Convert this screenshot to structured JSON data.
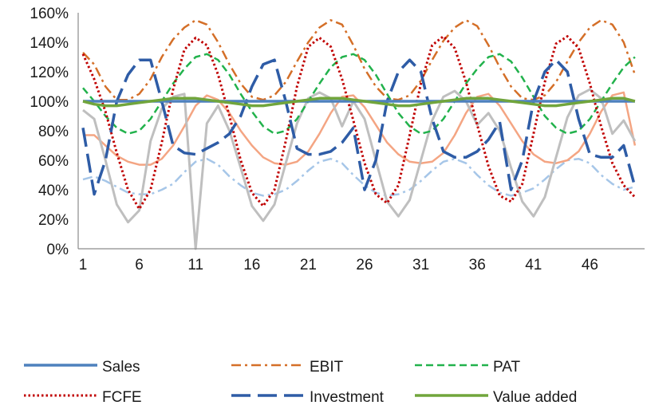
{
  "chart_data": {
    "type": "line",
    "title": "",
    "xlabel": "",
    "ylabel": "",
    "x_tick_labels": [
      "1",
      "6",
      "11",
      "16",
      "21",
      "26",
      "31",
      "36",
      "41",
      "46"
    ],
    "x_range": [
      1,
      50
    ],
    "y_tick_labels": [
      "0%",
      "20%",
      "40%",
      "60%",
      "80%",
      "100%",
      "120%",
      "140%",
      "160%"
    ],
    "ylim": [
      0,
      160
    ],
    "y_unit": "%",
    "grid": "none",
    "legend_position": "bottom",
    "series": [
      {
        "name": "Sales",
        "color": "#4e81bd",
        "dash": "solid",
        "width": 3.5,
        "legend": true,
        "values": [
          100,
          100,
          100,
          100,
          100,
          100,
          100,
          100,
          100,
          100,
          100,
          100,
          100,
          100,
          100,
          100,
          100,
          100,
          100,
          100,
          100,
          100,
          100,
          100,
          100,
          100,
          100,
          100,
          100,
          100,
          100,
          100,
          100,
          100,
          100,
          100,
          100,
          100,
          100,
          100,
          100,
          100,
          100,
          100,
          100,
          100,
          100,
          100,
          100,
          100
        ]
      },
      {
        "name": "EBIT",
        "color": "#d46f28",
        "dash": "dashdot",
        "width": 2.5,
        "legend": true,
        "values": [
          133,
          125,
          110,
          101,
          101,
          105,
          115,
          130,
          142,
          150,
          155,
          152,
          140,
          125,
          112,
          103,
          101,
          104,
          113,
          127,
          140,
          150,
          155,
          152,
          138,
          122,
          110,
          102,
          101,
          104,
          114,
          128,
          141,
          150,
          155,
          151,
          138,
          123,
          110,
          102,
          101,
          104,
          113,
          127,
          140,
          150,
          155,
          152,
          140,
          118
        ]
      },
      {
        "name": "PAT",
        "color": "#22b24c",
        "dash": "dashed",
        "width": 2.5,
        "legend": true,
        "values": [
          109,
          100,
          90,
          82,
          78,
          80,
          88,
          100,
          112,
          122,
          130,
          132,
          128,
          118,
          105,
          93,
          83,
          78,
          80,
          88,
          100,
          112,
          123,
          130,
          132,
          128,
          118,
          105,
          92,
          83,
          78,
          80,
          88,
          100,
          112,
          122,
          130,
          132,
          127,
          116,
          103,
          90,
          82,
          78,
          80,
          88,
          100,
          112,
          123,
          130
        ]
      },
      {
        "name": "FCFE",
        "color": "#c00000",
        "dash": "dotted",
        "width": 3,
        "legend": true,
        "values": [
          132,
          115,
          93,
          65,
          40,
          27,
          40,
          72,
          108,
          135,
          143,
          138,
          118,
          90,
          60,
          38,
          29,
          40,
          73,
          110,
          137,
          143,
          137,
          115,
          87,
          58,
          37,
          31,
          43,
          77,
          112,
          138,
          144,
          136,
          113,
          84,
          56,
          36,
          32,
          44,
          78,
          113,
          139,
          144,
          136,
          112,
          83,
          58,
          43,
          35
        ]
      },
      {
        "name": "Investment",
        "color": "#2e5ca6",
        "dash": "longdash",
        "width": 3.5,
        "legend": true,
        "values": [
          82,
          37,
          60,
          100,
          118,
          128,
          128,
          100,
          70,
          65,
          64,
          68,
          72,
          78,
          90,
          110,
          125,
          128,
          100,
          68,
          64,
          64,
          66,
          72,
          82,
          40,
          60,
          100,
          120,
          128,
          120,
          88,
          66,
          62,
          62,
          66,
          74,
          86,
          40,
          60,
          100,
          120,
          128,
          120,
          88,
          64,
          62,
          62,
          70,
          42
        ]
      },
      {
        "name": "Value added",
        "color": "#71a53c",
        "dash": "solid",
        "width": 3.5,
        "legend": true,
        "values": [
          100,
          98,
          97,
          97,
          98,
          99,
          100,
          101,
          102,
          102,
          102,
          101,
          100,
          99,
          98,
          97,
          97,
          98,
          99,
          100,
          101,
          102,
          102,
          102,
          101,
          100,
          99,
          98,
          97,
          97,
          98,
          99,
          100,
          101,
          102,
          102,
          102,
          101,
          100,
          99,
          98,
          97,
          97,
          98,
          99,
          100,
          101,
          102,
          102,
          100
        ]
      },
      {
        "name": "",
        "color": "#a6c6e8",
        "dash": "dashdot",
        "width": 2.5,
        "legend": false,
        "values": [
          47,
          49,
          46,
          42,
          38,
          37,
          37,
          40,
          44,
          52,
          59,
          61,
          57,
          49,
          43,
          38,
          36,
          37,
          40,
          46,
          53,
          59,
          61,
          58,
          50,
          43,
          38,
          36,
          37,
          40,
          46,
          53,
          59,
          61,
          58,
          50,
          43,
          38,
          36,
          38,
          41,
          47,
          54,
          60,
          61,
          58,
          50,
          44,
          40,
          42
        ]
      },
      {
        "name": "",
        "color": "#f4a583",
        "dash": "solid",
        "width": 2.5,
        "legend": false,
        "values": [
          77,
          77,
          70,
          63,
          59,
          57,
          57,
          61,
          70,
          83,
          97,
          104,
          101,
          92,
          80,
          70,
          62,
          58,
          57,
          59,
          66,
          78,
          92,
          103,
          104,
          96,
          84,
          72,
          64,
          59,
          58,
          59,
          65,
          77,
          92,
          103,
          105,
          97,
          85,
          73,
          64,
          59,
          58,
          60,
          66,
          78,
          93,
          104,
          106,
          70
        ]
      },
      {
        "name": "",
        "color": "#bfbfbf",
        "dash": "solid",
        "width": 3,
        "legend": false,
        "values": [
          94,
          88,
          60,
          30,
          18,
          26,
          73,
          95,
          103,
          105,
          0,
          85,
          97,
          80,
          55,
          29,
          19,
          30,
          58,
          85,
          102,
          106,
          102,
          83,
          100,
          88,
          60,
          32,
          22,
          33,
          60,
          87,
          103,
          107,
          100,
          84,
          92,
          80,
          55,
          32,
          22,
          35,
          62,
          89,
          104,
          108,
          102,
          78,
          87,
          73
        ]
      }
    ]
  },
  "legend": {
    "items": [
      {
        "label": "Sales",
        "series": 0
      },
      {
        "label": "EBIT",
        "series": 1
      },
      {
        "label": "PAT",
        "series": 2
      },
      {
        "label": "FCFE",
        "series": 3
      },
      {
        "label": "Investment",
        "series": 4
      },
      {
        "label": "Value added",
        "series": 5
      }
    ]
  }
}
